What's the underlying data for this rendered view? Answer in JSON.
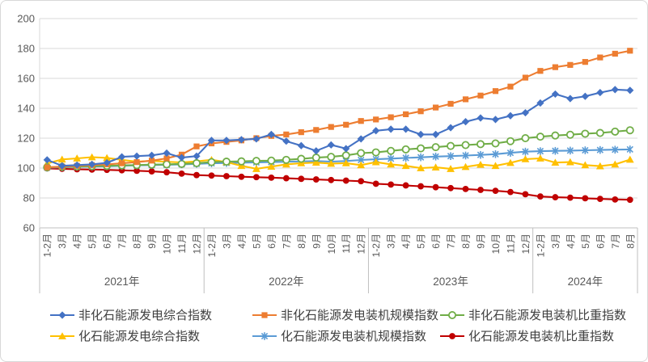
{
  "chart_data": {
    "type": "line",
    "title": "",
    "grid": true,
    "legend_position": "bottom",
    "y_axis": {
      "min": 60,
      "max": 200,
      "step": 20,
      "tick_labels": [
        "60",
        "80",
        "100",
        "120",
        "140",
        "160",
        "180",
        "200"
      ]
    },
    "x_axis": {
      "years": [
        {
          "label": "2021年",
          "months": [
            "1-2月",
            "3月",
            "4月",
            "5月",
            "6月",
            "7月",
            "8月",
            "9月",
            "10月",
            "11月",
            "12月"
          ]
        },
        {
          "label": "2022年",
          "months": [
            "1-2月",
            "3月",
            "4月",
            "5月",
            "6月",
            "7月",
            "8月",
            "9月",
            "10月",
            "11月",
            "12月"
          ]
        },
        {
          "label": "2023年",
          "months": [
            "1-2月",
            "3月",
            "4月",
            "5月",
            "6月",
            "7月",
            "8月",
            "9月",
            "10月",
            "11月",
            "12月"
          ]
        },
        {
          "label": "2024年",
          "months": [
            "1-2月",
            "3月",
            "4月",
            "5月",
            "6月",
            "7月",
            "8月"
          ]
        }
      ]
    },
    "colors": {
      "gridline": "#d9d9d9",
      "axis": "#bfbfbf",
      "axis_text": "#595959"
    },
    "series": [
      {
        "name": "非化石能源发电综合指数",
        "color": "#4472C4",
        "marker": "diamond",
        "values": [
          105.5,
          101.5,
          102,
          102.5,
          103.5,
          107.5,
          108,
          108.5,
          110,
          107,
          108,
          118.5,
          118.5,
          119,
          119.5,
          122.5,
          118,
          115,
          111.5,
          115.5,
          113,
          119.5,
          125,
          126,
          126,
          122.5,
          122.5,
          127,
          131,
          133.5,
          132.5,
          135,
          137,
          143.5,
          149.5,
          146.5,
          148,
          150.5,
          152.5,
          152
        ]
      },
      {
        "name": "非化石能源发电装机规模指数",
        "color": "#ED7D31",
        "marker": "square",
        "values": [
          100.5,
          101,
          101.5,
          102,
          102.5,
          103.2,
          104,
          105,
          106.5,
          109,
          114.5,
          116.5,
          117.5,
          118.5,
          120,
          121.5,
          122.5,
          124,
          125.5,
          127.5,
          129,
          131.5,
          132.5,
          134,
          136,
          138,
          140.5,
          143,
          146,
          148.5,
          151.5,
          154.5,
          160.5,
          165,
          167.5,
          169,
          171,
          174,
          176.5,
          178.5
        ]
      },
      {
        "name": "非化石能源发电装机比重指数",
        "color": "#70AD47",
        "marker": "circle-open",
        "values": [
          100.5,
          100.8,
          101,
          101.3,
          101.5,
          101.8,
          102,
          102.3,
          102.5,
          102.8,
          103.3,
          104,
          104.3,
          104.5,
          104.8,
          105,
          105.5,
          106.2,
          107,
          107.5,
          108.5,
          110,
          110.5,
          111.5,
          112.5,
          113.2,
          114,
          114.8,
          115.4,
          116,
          116.5,
          118,
          120,
          121,
          121.8,
          122.3,
          123,
          123.5,
          124.4,
          125.3
        ]
      },
      {
        "name": "化石能源发电综合指数",
        "color": "#FFC000",
        "marker": "triangle",
        "values": [
          103,
          105.8,
          106.5,
          107.3,
          106.8,
          105.5,
          104.3,
          104.8,
          104.2,
          103.8,
          104.5,
          105.5,
          104,
          101.5,
          99.5,
          101,
          102.5,
          103.3,
          103.7,
          103,
          103.3,
          102,
          104,
          102.5,
          101.5,
          100,
          100.5,
          99.5,
          100.8,
          102.3,
          101.5,
          103.5,
          106,
          106.5,
          103.7,
          104,
          102,
          101.3,
          102.5,
          105.7
        ]
      },
      {
        "name": "化石能源发电装机规模指数",
        "color": "#5B9BD5",
        "marker": "asterisk",
        "values": [
          100.3,
          100.5,
          100.8,
          101,
          101.2,
          101.5,
          101.8,
          102,
          102.2,
          102.5,
          102.8,
          103.2,
          103.4,
          103.6,
          103.8,
          104,
          104.2,
          104.5,
          104.7,
          104.3,
          104.7,
          105.4,
          105.9,
          106.3,
          106.8,
          107.2,
          107.7,
          108,
          108.4,
          108.8,
          109.3,
          110.2,
          111,
          111.3,
          111.5,
          111.7,
          111.9,
          112.1,
          112.3,
          112.5
        ]
      },
      {
        "name": "化石能源发电装机比重指数",
        "color": "#C00000",
        "marker": "circle",
        "values": [
          99.8,
          99.5,
          99.2,
          99,
          98.8,
          98.5,
          98.2,
          97.8,
          97.2,
          96.3,
          95.3,
          95,
          94.6,
          94.2,
          93.9,
          93.6,
          93.2,
          92.8,
          92.4,
          92,
          91.6,
          91.2,
          89.5,
          89,
          88.4,
          87.8,
          87.2,
          86.6,
          86,
          85.4,
          84.8,
          84,
          82.5,
          81,
          80.5,
          80.2,
          79.8,
          79.4,
          79,
          78.8
        ]
      }
    ]
  }
}
